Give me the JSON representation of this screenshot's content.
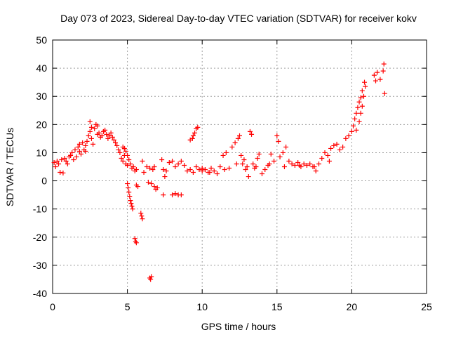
{
  "chart_data": {
    "type": "scatter",
    "title": "Day 073 of 2023, Sidereal Day-to-day VTEC variation (SDTVAR) for receiver kokv",
    "xlabel": "GPS time / hours",
    "ylabel": "SDTVAR / TECUs",
    "xlim": [
      0,
      25
    ],
    "ylim": [
      -40,
      50
    ],
    "xticks": [
      0,
      5,
      10,
      15,
      20,
      25
    ],
    "yticks": [
      -40,
      -30,
      -20,
      -10,
      0,
      10,
      20,
      30,
      40,
      50
    ],
    "grid": true,
    "marker": "+",
    "color": "#ff0000",
    "series": [
      {
        "name": "SDTVAR",
        "points": [
          [
            0.1,
            6.5
          ],
          [
            0.2,
            5.0
          ],
          [
            0.3,
            7.0
          ],
          [
            0.4,
            6.0
          ],
          [
            0.5,
            3.0
          ],
          [
            0.6,
            7.5
          ],
          [
            0.7,
            2.8
          ],
          [
            0.8,
            8.0
          ],
          [
            0.9,
            7.0
          ],
          [
            1.0,
            6.0
          ],
          [
            1.1,
            8.5
          ],
          [
            1.2,
            9.0
          ],
          [
            1.3,
            10.0
          ],
          [
            1.4,
            7.5
          ],
          [
            1.5,
            11.0
          ],
          [
            1.6,
            8.5
          ],
          [
            1.7,
            12.0
          ],
          [
            1.8,
            10.5
          ],
          [
            1.9,
            9.5
          ],
          [
            2.0,
            13.5
          ],
          [
            2.1,
            11.0
          ],
          [
            2.2,
            12.5
          ],
          [
            2.3,
            14.0
          ],
          [
            2.4,
            16.0
          ],
          [
            2.5,
            17.5
          ],
          [
            2.6,
            15.0
          ],
          [
            2.7,
            13.0
          ],
          [
            2.8,
            18.5
          ],
          [
            2.9,
            20.0
          ],
          [
            3.0,
            16.5
          ],
          [
            3.1,
            17.0
          ],
          [
            3.2,
            15.5
          ],
          [
            3.3,
            16.0
          ],
          [
            3.4,
            17.5
          ],
          [
            3.5,
            18.0
          ],
          [
            3.6,
            16.5
          ],
          [
            3.7,
            15.0
          ],
          [
            3.8,
            16.0
          ],
          [
            3.9,
            17.0
          ],
          [
            4.0,
            15.5
          ],
          [
            4.1,
            14.5
          ],
          [
            4.2,
            13.5
          ],
          [
            4.3,
            12.5
          ],
          [
            4.4,
            11.0
          ],
          [
            4.5,
            10.0
          ],
          [
            4.6,
            8.0
          ],
          [
            4.7,
            7.0
          ],
          [
            4.8,
            9.0
          ],
          [
            4.9,
            6.0
          ],
          [
            5.0,
            5.5
          ],
          [
            2.5,
            21.0
          ],
          [
            2.6,
            19.0
          ],
          [
            3.0,
            19.5
          ],
          [
            2.2,
            10.5
          ],
          [
            1.8,
            13.0
          ],
          [
            4.7,
            12.0
          ],
          [
            4.8,
            11.5
          ],
          [
            4.9,
            10.5
          ],
          [
            5.0,
            9.0
          ],
          [
            5.1,
            7.5
          ],
          [
            5.2,
            6.0
          ],
          [
            5.3,
            4.5
          ],
          [
            5.4,
            5.0
          ],
          [
            5.5,
            3.5
          ],
          [
            5.6,
            4.0
          ],
          [
            5.0,
            -1.0
          ],
          [
            5.05,
            -2.5
          ],
          [
            5.1,
            -4.0
          ],
          [
            5.15,
            -5.5
          ],
          [
            5.2,
            -7.0
          ],
          [
            5.25,
            -8.0
          ],
          [
            5.3,
            -9.0
          ],
          [
            5.35,
            -10.0
          ],
          [
            5.5,
            -20.5
          ],
          [
            5.55,
            -21.5
          ],
          [
            5.6,
            -22.0
          ],
          [
            5.9,
            -11.5
          ],
          [
            5.95,
            -12.5
          ],
          [
            6.0,
            -13.5
          ],
          [
            6.5,
            -34.5
          ],
          [
            6.55,
            -35.0
          ],
          [
            6.6,
            -34.0
          ],
          [
            5.6,
            -1.5
          ],
          [
            5.7,
            -2.0
          ],
          [
            6.0,
            7.0
          ],
          [
            6.1,
            3.0
          ],
          [
            6.3,
            5.0
          ],
          [
            6.5,
            4.5
          ],
          [
            6.7,
            4.0
          ],
          [
            6.8,
            5.0
          ],
          [
            6.4,
            -0.5
          ],
          [
            6.6,
            -1.0
          ],
          [
            6.8,
            -2.0
          ],
          [
            6.9,
            -3.0
          ],
          [
            7.0,
            -2.5
          ],
          [
            7.3,
            7.5
          ],
          [
            7.4,
            4.0
          ],
          [
            7.5,
            1.5
          ],
          [
            7.6,
            3.5
          ],
          [
            7.8,
            6.5
          ],
          [
            8.0,
            7.0
          ],
          [
            8.2,
            5.0
          ],
          [
            8.4,
            6.0
          ],
          [
            8.6,
            7.0
          ],
          [
            8.8,
            5.5
          ],
          [
            7.4,
            -5.0
          ],
          [
            8.0,
            -5.0
          ],
          [
            8.2,
            -4.5
          ],
          [
            8.4,
            -5.0
          ],
          [
            8.6,
            -5.0
          ],
          [
            9.0,
            3.5
          ],
          [
            9.2,
            4.0
          ],
          [
            9.4,
            3.0
          ],
          [
            9.6,
            5.0
          ],
          [
            9.8,
            4.0
          ],
          [
            10.0,
            3.5
          ],
          [
            10.2,
            4.0
          ],
          [
            10.4,
            3.0
          ],
          [
            10.6,
            4.5
          ],
          [
            10.8,
            3.5
          ],
          [
            9.2,
            14.5
          ],
          [
            9.4,
            16.0
          ],
          [
            9.5,
            17.0
          ],
          [
            9.6,
            18.5
          ],
          [
            9.7,
            19.0
          ],
          [
            9.35,
            15.0
          ],
          [
            11.0,
            2.5
          ],
          [
            11.2,
            5.0
          ],
          [
            11.4,
            9.0
          ],
          [
            11.6,
            10.0
          ],
          [
            11.8,
            4.5
          ],
          [
            12.0,
            12.0
          ],
          [
            12.2,
            13.5
          ],
          [
            12.4,
            15.0
          ],
          [
            12.5,
            16.0
          ],
          [
            12.6,
            9.0
          ],
          [
            12.7,
            6.0
          ],
          [
            12.8,
            7.5
          ],
          [
            12.9,
            4.0
          ],
          [
            13.0,
            5.0
          ],
          [
            13.1,
            1.5
          ],
          [
            13.2,
            17.5
          ],
          [
            13.3,
            16.5
          ],
          [
            13.4,
            6.0
          ],
          [
            13.5,
            4.5
          ],
          [
            13.7,
            8.0
          ],
          [
            13.8,
            9.5
          ],
          [
            14.0,
            2.5
          ],
          [
            14.2,
            4.0
          ],
          [
            14.4,
            5.5
          ],
          [
            14.6,
            9.5
          ],
          [
            14.8,
            7.0
          ],
          [
            15.0,
            16.0
          ],
          [
            15.1,
            14.0
          ],
          [
            15.2,
            8.5
          ],
          [
            15.4,
            10.0
          ],
          [
            15.6,
            12.0
          ],
          [
            15.8,
            7.0
          ],
          [
            16.0,
            6.0
          ],
          [
            16.2,
            5.5
          ],
          [
            16.4,
            6.5
          ],
          [
            16.6,
            5.0
          ],
          [
            16.8,
            6.0
          ],
          [
            17.0,
            5.5
          ],
          [
            17.2,
            6.0
          ],
          [
            17.4,
            5.0
          ],
          [
            17.6,
            3.5
          ],
          [
            17.8,
            6.0
          ],
          [
            18.0,
            8.0
          ],
          [
            18.2,
            10.0
          ],
          [
            18.4,
            9.0
          ],
          [
            18.6,
            11.5
          ],
          [
            18.8,
            12.5
          ],
          [
            19.0,
            13.0
          ],
          [
            19.2,
            11.0
          ],
          [
            19.4,
            12.0
          ],
          [
            19.6,
            15.0
          ],
          [
            19.8,
            16.0
          ],
          [
            20.0,
            17.5
          ],
          [
            20.1,
            19.5
          ],
          [
            20.2,
            22.0
          ],
          [
            20.3,
            24.0
          ],
          [
            20.4,
            26.0
          ],
          [
            20.5,
            28.0
          ],
          [
            20.6,
            29.5
          ],
          [
            20.7,
            26.5
          ],
          [
            20.8,
            30.0
          ],
          [
            20.9,
            33.5
          ],
          [
            20.5,
            21.0
          ],
          [
            20.3,
            18.0
          ],
          [
            20.6,
            24.0
          ],
          [
            20.7,
            32.0
          ],
          [
            20.85,
            35.0
          ],
          [
            21.5,
            37.5
          ],
          [
            21.6,
            35.5
          ],
          [
            21.7,
            38.5
          ],
          [
            21.9,
            36.0
          ],
          [
            22.1,
            39.0
          ],
          [
            22.15,
            41.5
          ],
          [
            22.2,
            31.0
          ],
          [
            10.0,
            4.5
          ],
          [
            10.5,
            3.0
          ],
          [
            11.5,
            4.0
          ],
          [
            12.3,
            6.0
          ],
          [
            13.6,
            5.0
          ],
          [
            14.5,
            6.0
          ],
          [
            15.5,
            5.0
          ],
          [
            16.5,
            5.5
          ],
          [
            17.5,
            5.0
          ],
          [
            18.5,
            7.0
          ]
        ]
      }
    ]
  }
}
